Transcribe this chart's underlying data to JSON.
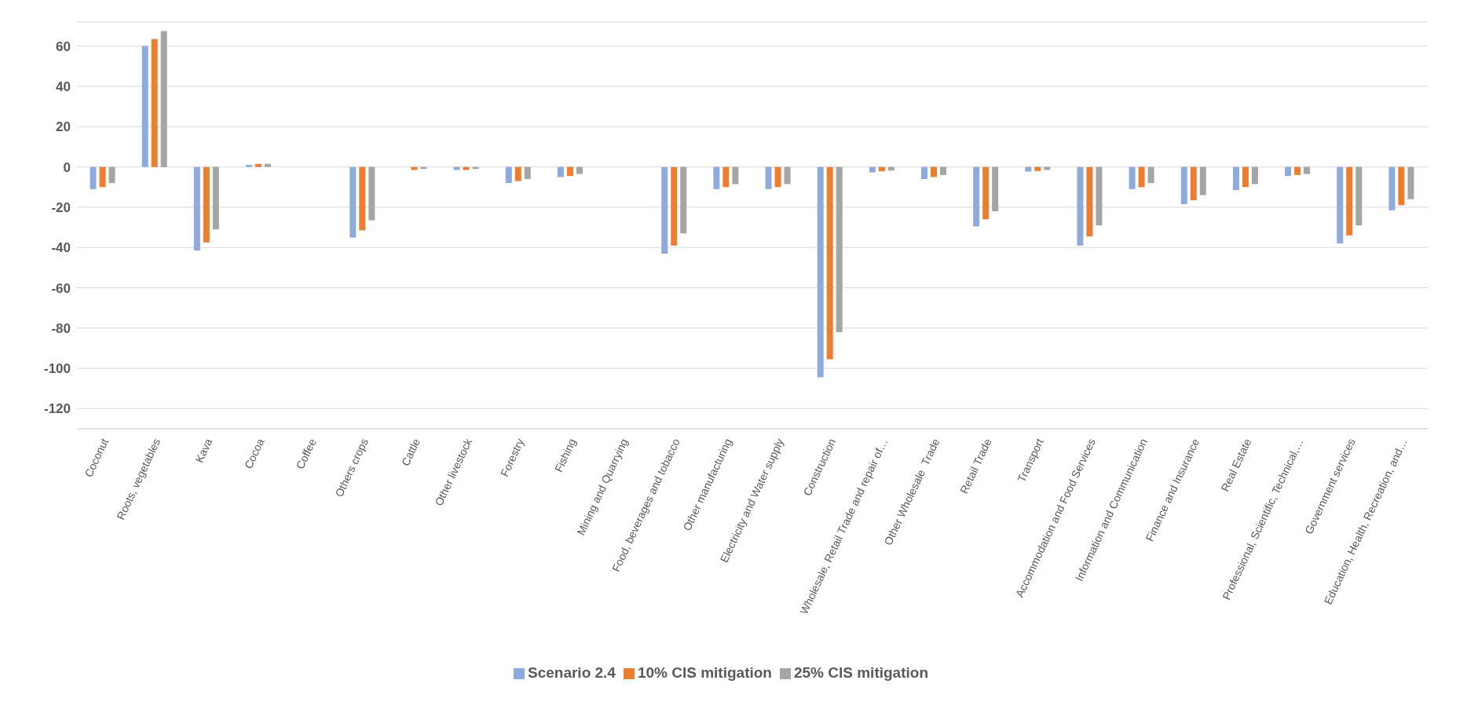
{
  "chart_data": {
    "type": "bar",
    "categories": [
      "Coconut",
      "Roots, vegetables",
      "Kava",
      "Cocoa",
      "Coffee",
      "Others crops",
      "Cattle",
      "Other livestock",
      "Forestry",
      "Fishing",
      "Mining and Quarrying",
      "Food, beverages and tobacco",
      "Other manufacturing",
      "Electricity and Water supply",
      "Construction",
      "Wholesale, Retail Trade and repair of…",
      "Other Wholesale  Trade",
      "Retail Trade",
      "Transport",
      "Accommodation and Food Services",
      "Information and Communication",
      "Finance and Insurance",
      "Real Estate",
      "Professional, Scientific, Technical,…",
      "Government services",
      "Education, Health, Recreation, and…"
    ],
    "series": [
      {
        "name": "Scenario 2.4",
        "color": "#8faadc",
        "values": [
          -11,
          60,
          -41.5,
          1,
          0,
          -35,
          0,
          -1.5,
          -8,
          -5,
          0,
          -43,
          -11,
          -11,
          -104.5,
          -2.7,
          -6,
          -29.5,
          -2.3,
          -39,
          -11,
          -18.5,
          -11.5,
          -4.5,
          -38,
          -21.5
        ]
      },
      {
        "name": "10% CIS mitigation",
        "color": "#ed7d31",
        "values": [
          -10,
          63.5,
          -37.5,
          1.5,
          0,
          -31.5,
          -1.5,
          -1.5,
          -7,
          -4.5,
          0,
          -39,
          -10,
          -10,
          -95.5,
          -2.2,
          -5,
          -26,
          -2,
          -34.5,
          -10,
          -16.5,
          -10,
          -4,
          -34,
          -19
        ]
      },
      {
        "name": "25% CIS mitigation",
        "color": "#a5a5a5",
        "values": [
          -8,
          67.5,
          -31,
          1.5,
          0,
          -26.5,
          -1,
          -1,
          -6,
          -3.5,
          0,
          -33,
          -8.5,
          -8.5,
          -82,
          -1.8,
          -4,
          -22,
          -1.5,
          -29,
          -8,
          -14,
          -8.5,
          -3.5,
          -29,
          -16
        ]
      }
    ],
    "ylim": [
      -130,
      72
    ],
    "yticks": [
      -120,
      -100,
      -80,
      -60,
      -40,
      -20,
      0,
      20,
      40,
      60
    ],
    "grid": "y",
    "legend": "bottom"
  }
}
